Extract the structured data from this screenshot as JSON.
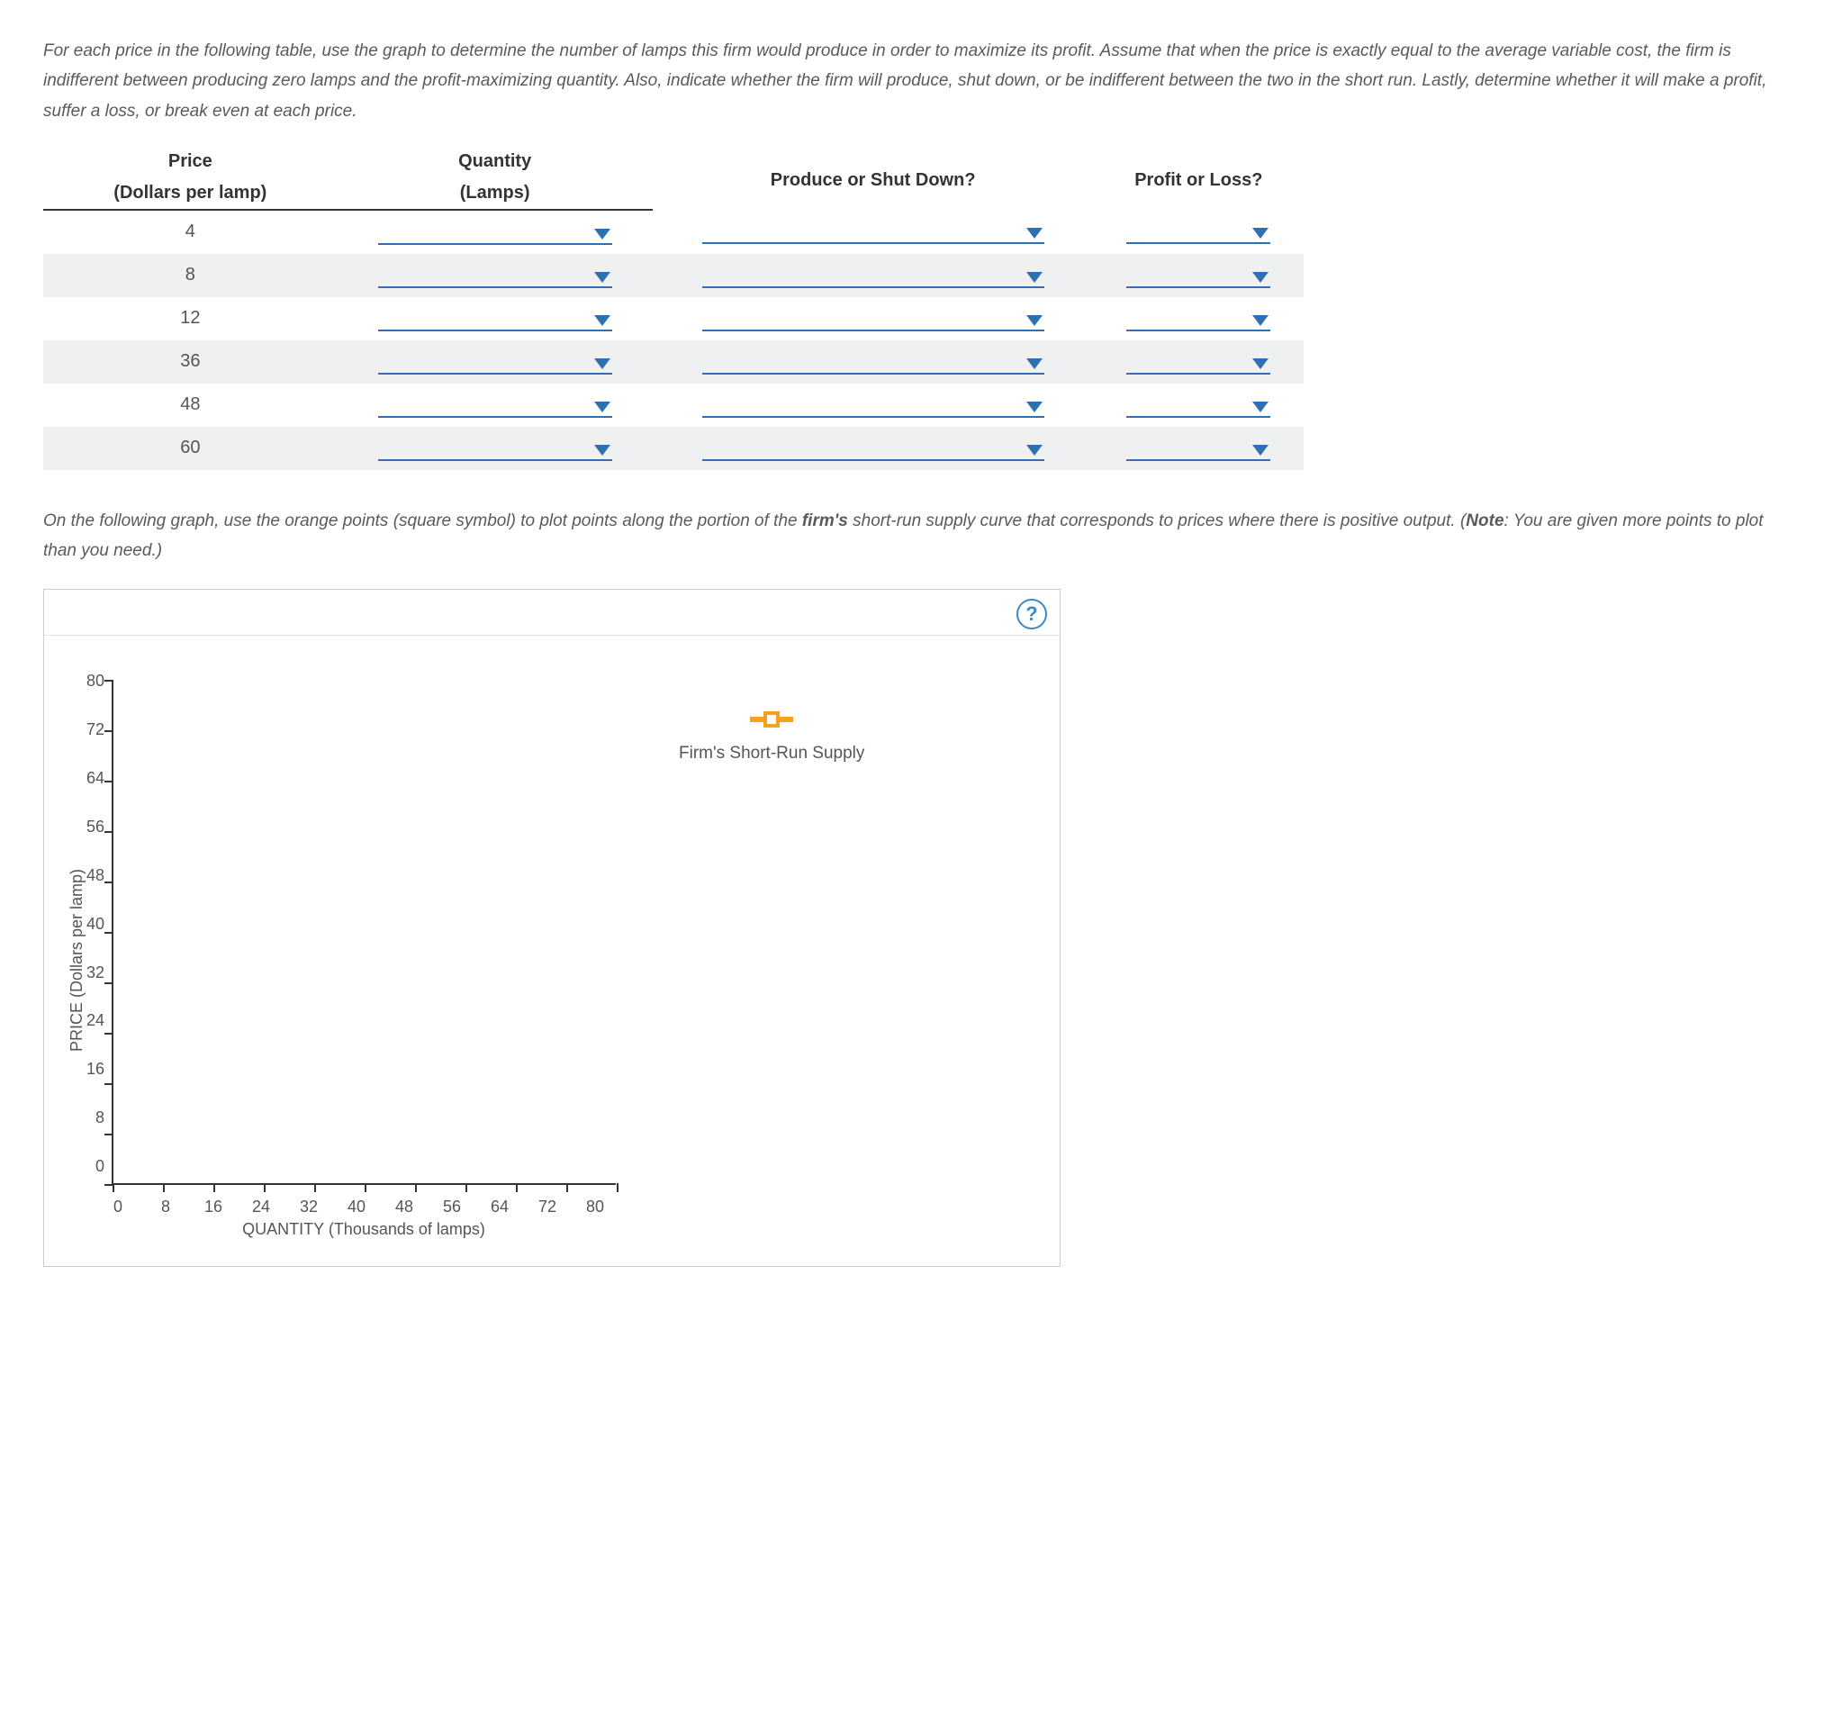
{
  "instructions_html": "For each price in the following table, use the graph to determine the number of lamps this firm would produce in order to maximize its profit. Assume that when the price is exactly equal to the average variable cost, the firm is indifferent between producing zero lamps and the profit-maximizing quantity. Also, indicate whether the firm will produce, shut down, or be indifferent between the two in the short run. Lastly, determine whether it will make a profit, suffer a loss, or break even at each price.",
  "table": {
    "headers": {
      "price_top": "Price",
      "price_sub": "(Dollars per lamp)",
      "qty_top": "Quantity",
      "qty_sub": "(Lamps)",
      "pd": "Produce or Shut Down?",
      "pl": "Profit or Loss?"
    },
    "prices": [
      "4",
      "8",
      "12",
      "36",
      "48",
      "60"
    ]
  },
  "para2_pre": "On the following graph, use the orange points (square symbol) to plot points along the portion of the ",
  "para2_bold": "firm's",
  "para2_mid": " short-run supply curve that corresponds to prices where there is positive output. (",
  "para2_note_bold": "Note",
  "para2_post": ": You are given more points to plot than you need.)",
  "graph": {
    "help": "?",
    "ylabel": "PRICE (Dollars per lamp)",
    "xlabel": "QUANTITY (Thousands of lamps)",
    "yticks": [
      "80",
      "72",
      "64",
      "56",
      "48",
      "40",
      "32",
      "24",
      "16",
      "8",
      "0"
    ],
    "xticks": [
      "0",
      "8",
      "16",
      "24",
      "32",
      "40",
      "48",
      "56",
      "64",
      "72",
      "80"
    ],
    "legend_label": "Firm's Short-Run Supply",
    "marker_color": "#f6a11a",
    "axis_color": "#333333",
    "dropdown_color": "#2f6fb3",
    "ymax": 80,
    "xmax": 80
  }
}
